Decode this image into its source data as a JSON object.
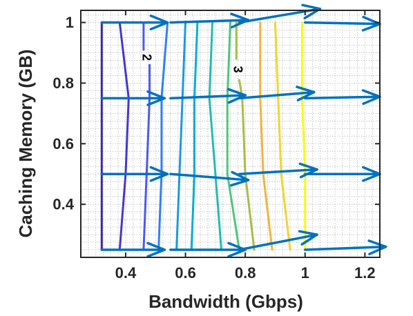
{
  "chart_data": {
    "type": "contour",
    "xlabel": "Bandwidth (Gbps)",
    "ylabel": "Caching Memory (GB)",
    "xlim": [
      0.25,
      1.25
    ],
    "ylim": [
      0.225,
      1.04
    ],
    "x_ticks": [
      {
        "value": 0.4,
        "label": "0.4"
      },
      {
        "value": 0.6,
        "label": "0.6"
      },
      {
        "value": 0.8,
        "label": "0.8"
      },
      {
        "value": 1.0,
        "label": "1"
      },
      {
        "value": 1.2,
        "label": "1.2"
      }
    ],
    "y_ticks": [
      {
        "value": 0.4,
        "label": "0.4"
      },
      {
        "value": 0.6,
        "label": "0.6"
      },
      {
        "value": 0.8,
        "label": "0.8"
      },
      {
        "value": 1.0,
        "label": "1"
      }
    ],
    "grid": "minor dotted",
    "contour_lines": [
      {
        "color": "#3e26a8",
        "points": [
          [
            0.32,
            1.0
          ],
          [
            0.32,
            0.75
          ],
          [
            0.32,
            0.5
          ],
          [
            0.32,
            0.25
          ]
        ]
      },
      {
        "color": "#4535d4",
        "points": [
          [
            0.38,
            1.0
          ],
          [
            0.41,
            0.75
          ],
          [
            0.4,
            0.5
          ],
          [
            0.38,
            0.25
          ]
        ]
      },
      {
        "color": "#4a58f8",
        "points": [
          [
            0.46,
            1.0
          ],
          [
            0.46,
            0.91
          ]
        ]
      },
      {
        "color": "#4a58f8",
        "points": [
          [
            0.48,
            0.86
          ],
          [
            0.48,
            0.75
          ],
          [
            0.47,
            0.5
          ],
          [
            0.46,
            0.25
          ]
        ]
      },
      {
        "color": "#2f7ff8",
        "points": [
          [
            0.54,
            1.0
          ],
          [
            0.52,
            0.75
          ],
          [
            0.52,
            0.5
          ],
          [
            0.51,
            0.25
          ]
        ]
      },
      {
        "color": "#1a9adf",
        "points": [
          [
            0.6,
            1.0
          ],
          [
            0.59,
            0.75
          ],
          [
            0.58,
            0.5
          ],
          [
            0.57,
            0.25
          ]
        ]
      },
      {
        "color": "#02aed6",
        "points": [
          [
            0.64,
            1.0
          ],
          [
            0.63,
            0.75
          ],
          [
            0.63,
            0.5
          ],
          [
            0.62,
            0.25
          ]
        ]
      },
      {
        "color": "#21bcb2",
        "points": [
          [
            0.69,
            1.0
          ],
          [
            0.68,
            0.75
          ],
          [
            0.7,
            0.5
          ],
          [
            0.72,
            0.25
          ]
        ]
      },
      {
        "color": "#4bc77c",
        "points": [
          [
            0.75,
            1.0
          ],
          [
            0.74,
            0.75
          ],
          [
            0.74,
            0.5
          ],
          [
            0.78,
            0.25
          ]
        ]
      },
      {
        "color": "#a6be42",
        "points": [
          [
            0.77,
            1.0
          ],
          [
            0.77,
            0.88
          ]
        ]
      },
      {
        "color": "#a6be42",
        "points": [
          [
            0.78,
            0.81
          ],
          [
            0.79,
            0.75
          ],
          [
            0.8,
            0.5
          ],
          [
            0.83,
            0.25
          ]
        ]
      },
      {
        "color": "#f3b33c",
        "points": [
          [
            0.85,
            1.0
          ],
          [
            0.85,
            0.75
          ],
          [
            0.86,
            0.5
          ],
          [
            0.89,
            0.25
          ]
        ]
      },
      {
        "color": "#f2d52b",
        "points": [
          [
            0.9,
            1.0
          ],
          [
            0.91,
            0.75
          ],
          [
            0.92,
            0.5
          ],
          [
            0.95,
            0.25
          ]
        ]
      },
      {
        "color": "#f9fb0e",
        "points": [
          [
            0.99,
            1.0
          ],
          [
            0.99,
            0.75
          ],
          [
            1.0,
            0.5
          ],
          [
            1.0,
            0.25
          ]
        ]
      }
    ],
    "contour_labels": [
      {
        "text": "2",
        "x": 0.47,
        "y": 0.885,
        "rotation": 90
      },
      {
        "text": "3",
        "x": 0.775,
        "y": 0.845,
        "rotation": 90
      }
    ],
    "arrows": {
      "color": "#0072bd",
      "vectors": [
        {
          "x": 0.32,
          "y": 1.0,
          "u": 0.22,
          "v": 0.0
        },
        {
          "x": 0.55,
          "y": 1.0,
          "u": 0.26,
          "v": 0.008
        },
        {
          "x": 0.78,
          "y": 1.0,
          "u": 0.27,
          "v": 0.045
        },
        {
          "x": 1.0,
          "y": 1.0,
          "u": 0.25,
          "v": -0.005
        },
        {
          "x": 0.32,
          "y": 0.75,
          "u": 0.21,
          "v": 0.0
        },
        {
          "x": 0.55,
          "y": 0.75,
          "u": 0.25,
          "v": 0.01
        },
        {
          "x": 0.78,
          "y": 0.75,
          "u": 0.25,
          "v": 0.02
        },
        {
          "x": 1.0,
          "y": 0.75,
          "u": 0.25,
          "v": 0.005
        },
        {
          "x": 0.32,
          "y": 0.5,
          "u": 0.22,
          "v": 0.0
        },
        {
          "x": 0.55,
          "y": 0.5,
          "u": 0.26,
          "v": -0.02
        },
        {
          "x": 0.78,
          "y": 0.5,
          "u": 0.26,
          "v": 0.015
        },
        {
          "x": 1.0,
          "y": 0.5,
          "u": 0.25,
          "v": 0.0
        },
        {
          "x": 0.32,
          "y": 0.25,
          "u": 0.21,
          "v": 0.0
        },
        {
          "x": 0.55,
          "y": 0.25,
          "u": 0.25,
          "v": 0.0
        },
        {
          "x": 0.78,
          "y": 0.25,
          "u": 0.26,
          "v": 0.05
        },
        {
          "x": 1.0,
          "y": 0.25,
          "u": 0.27,
          "v": 0.01
        }
      ]
    }
  }
}
